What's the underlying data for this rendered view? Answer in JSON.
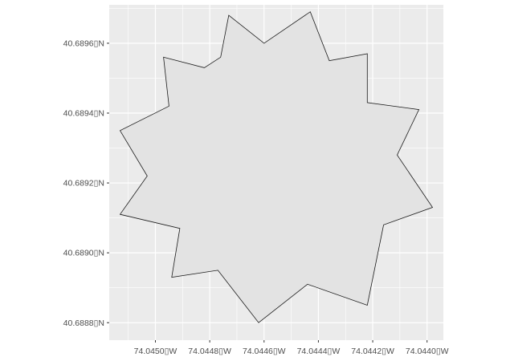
{
  "chart_data": {
    "type": "map-polygon",
    "title": "",
    "xlabel": "",
    "ylabel": "",
    "grid": true,
    "legend": "none",
    "colors": {
      "panel_background": "#ebebeb",
      "gridline": "#ffffff",
      "polygon_fill": "#e3e3e3",
      "polygon_stroke": "#1a1a1a",
      "tick_label": "#4d4d4d",
      "tick_mark": "#333333"
    },
    "xlim": [
      -74.04517,
      -74.04394
    ],
    "ylim": [
      40.68875,
      40.68971
    ],
    "x_ticks": [
      {
        "value": -74.045,
        "label": "74.0450▯W"
      },
      {
        "value": -74.0448,
        "label": "74.0448▯W"
      },
      {
        "value": -74.0446,
        "label": "74.0446▯W"
      },
      {
        "value": -74.0444,
        "label": "74.0444▯W"
      },
      {
        "value": -74.0442,
        "label": "74.0442▯W"
      },
      {
        "value": -74.044,
        "label": "74.0440▯W"
      }
    ],
    "y_ticks": [
      {
        "value": 40.6888,
        "label": "40.6888▯N"
      },
      {
        "value": 40.689,
        "label": "40.6890▯N"
      },
      {
        "value": 40.6892,
        "label": "40.6892▯N"
      },
      {
        "value": 40.6894,
        "label": "40.6894▯N"
      },
      {
        "value": 40.6896,
        "label": "40.6896▯N"
      }
    ],
    "polygon": [
      [
        -74.04473,
        40.68968
      ],
      [
        -74.0446,
        40.6896
      ],
      [
        -74.04443,
        40.68969
      ],
      [
        -74.04436,
        40.68955
      ],
      [
        -74.04422,
        40.68957
      ],
      [
        -74.04422,
        40.68943
      ],
      [
        -74.04403,
        40.68941
      ],
      [
        -74.04411,
        40.68928
      ],
      [
        -74.04398,
        40.68913
      ],
      [
        -74.04416,
        40.68908
      ],
      [
        -74.04422,
        40.68885
      ],
      [
        -74.04444,
        40.68891
      ],
      [
        -74.04462,
        40.6888
      ],
      [
        -74.04477,
        40.68895
      ],
      [
        -74.04494,
        40.68893
      ],
      [
        -74.04491,
        40.68907
      ],
      [
        -74.04513,
        40.68911
      ],
      [
        -74.04503,
        40.68922
      ],
      [
        -74.04513,
        40.68935
      ],
      [
        -74.04495,
        40.68942
      ],
      [
        -74.04497,
        40.68956
      ],
      [
        -74.04482,
        40.68953
      ],
      [
        -74.04476,
        40.68956
      ]
    ]
  }
}
